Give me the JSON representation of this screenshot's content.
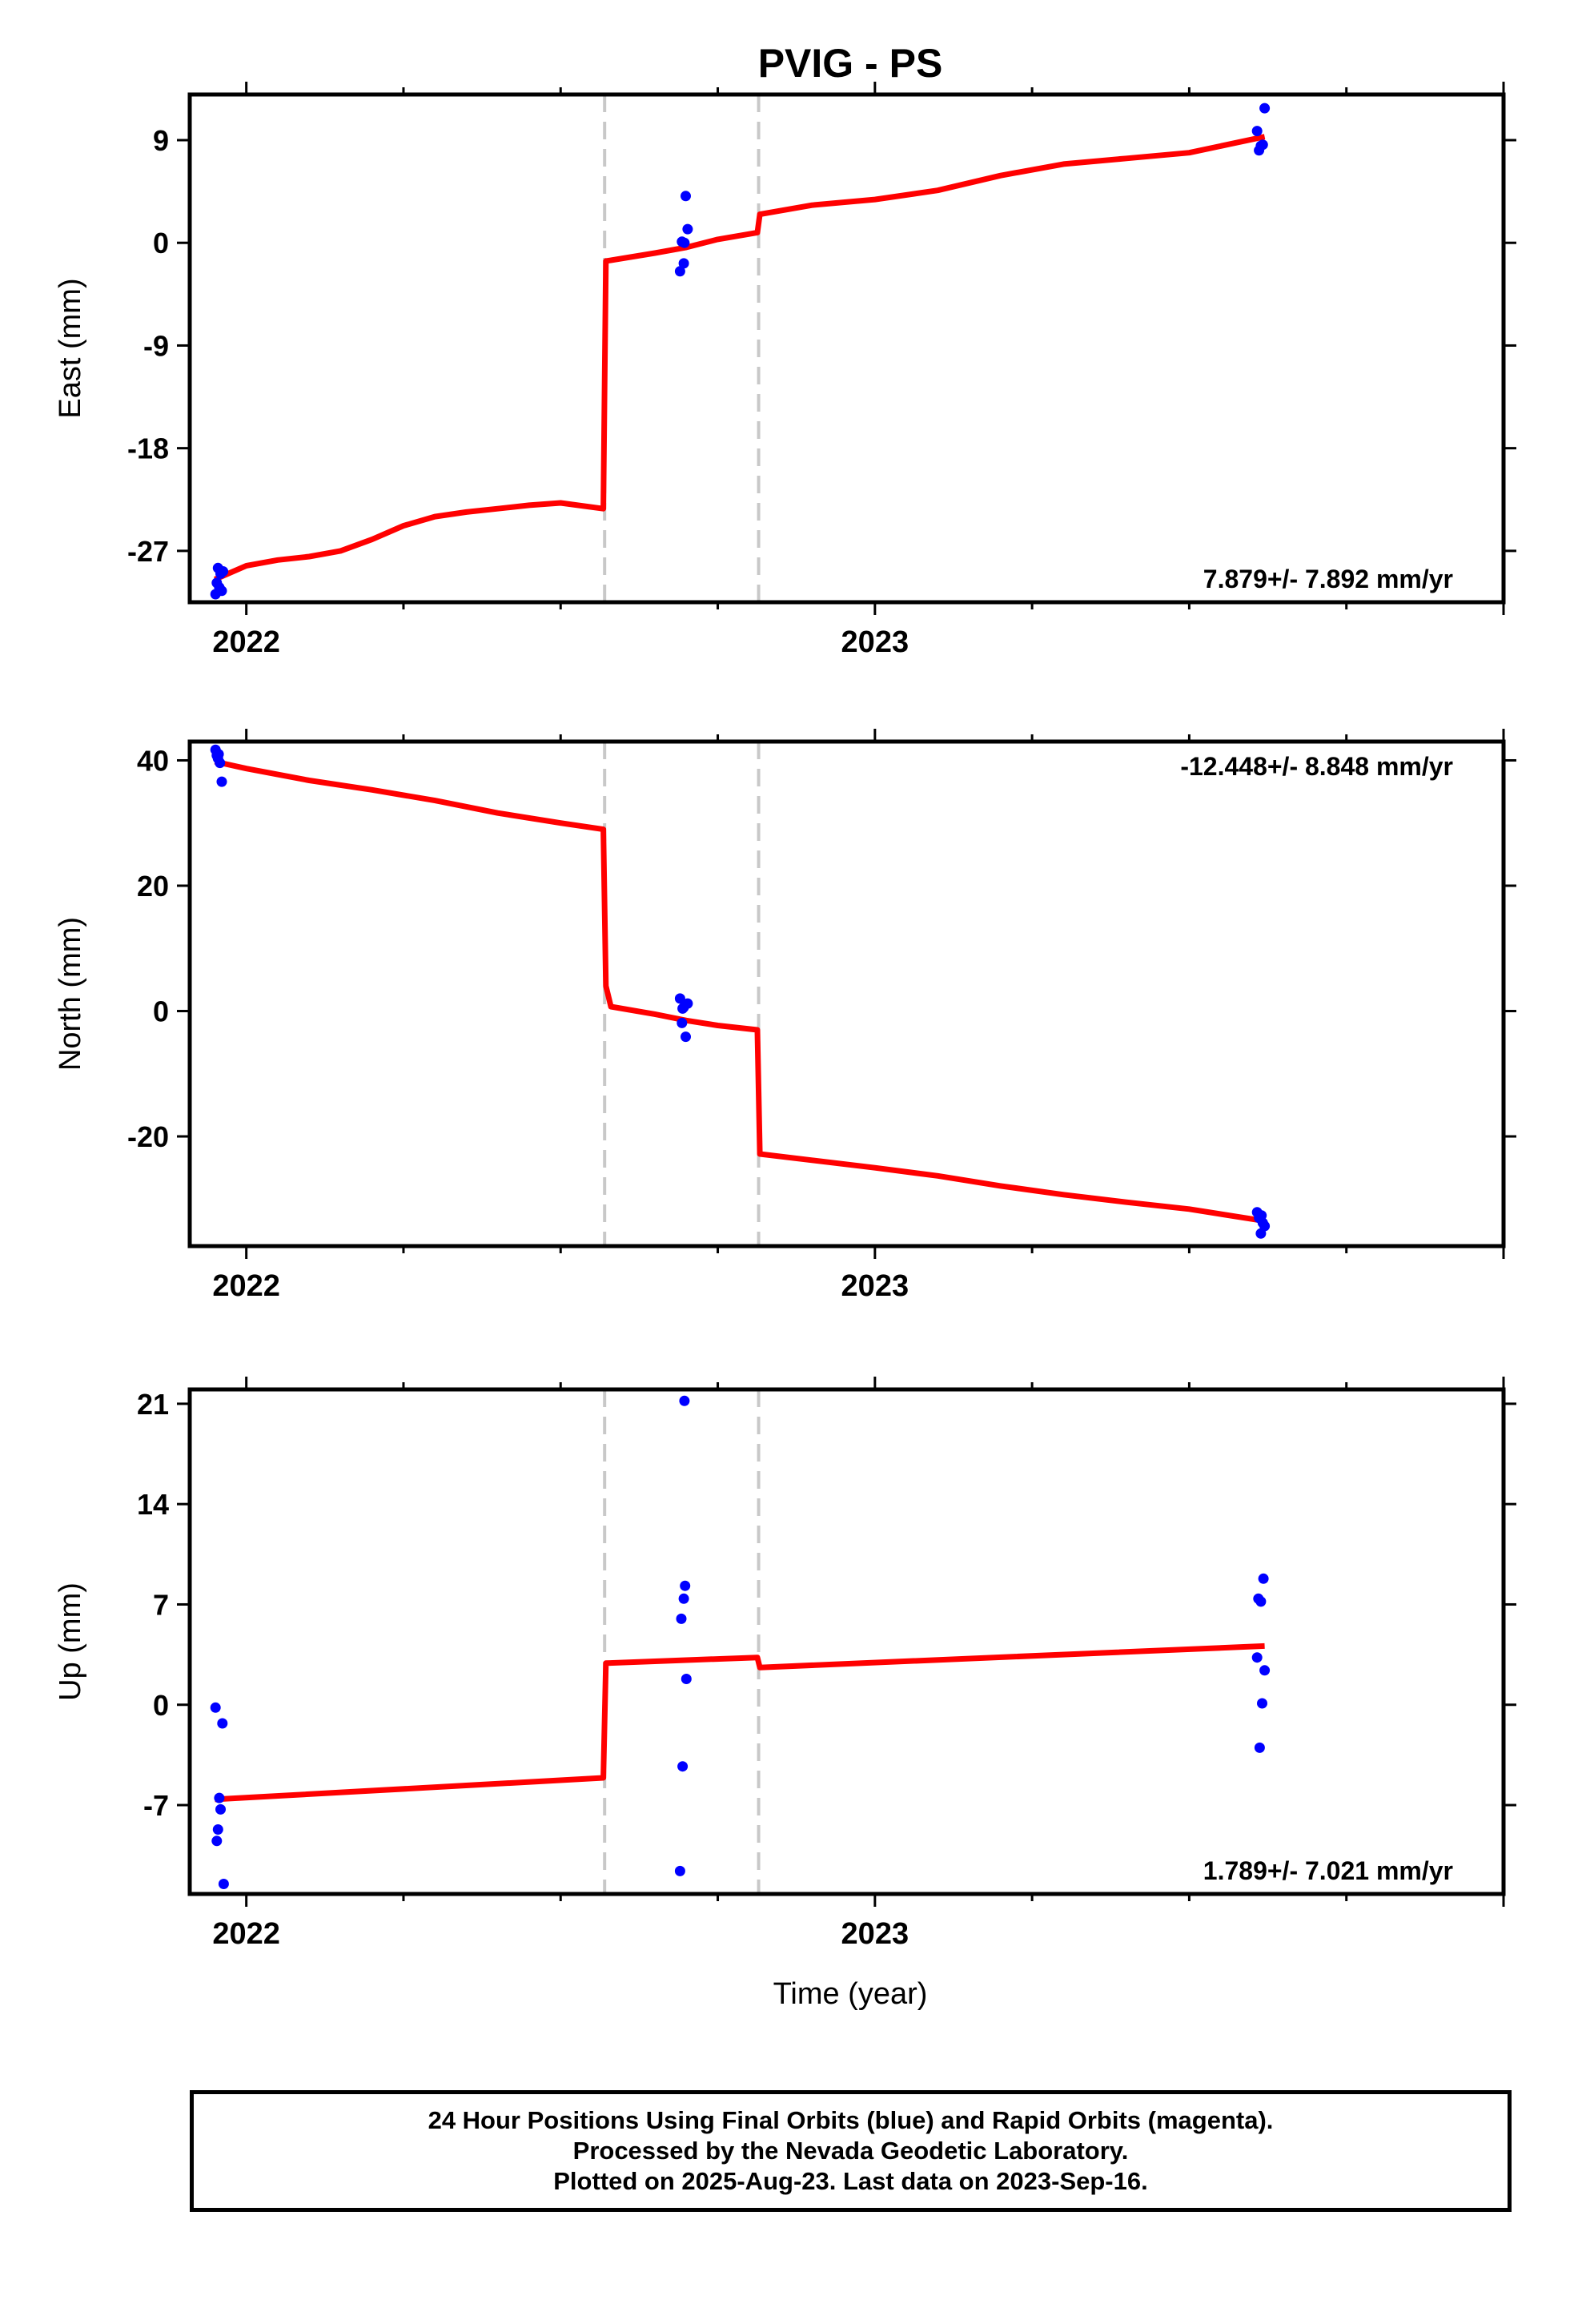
{
  "chart_data": {
    "type": "line",
    "title": "PVIG - PS",
    "xlabel": "Time (year)",
    "xlim": [
      2021.91,
      2024.0
    ],
    "x_ticks": [
      2022,
      2023
    ],
    "offset_epochs": [
      2022.57,
      2022.815
    ],
    "colors": {
      "model": "#ff0000",
      "final_orbits": "#0000ff",
      "offsets": "#c8c8c8"
    },
    "panels": [
      {
        "name": "east",
        "ylabel": "East (mm)",
        "ylim": [
          -31.5,
          13
        ],
        "yticks": [
          -27,
          -18,
          -9,
          0,
          9
        ],
        "yticklabels": [
          "-27",
          "-18",
          "-9",
          "0",
          "9"
        ],
        "rate_label": "7.879+/- 7.892 mm/yr",
        "rate_position": "bottom-right",
        "model": [
          [
            2021.95,
            -29.5
          ],
          [
            2022.0,
            -28.3
          ],
          [
            2022.05,
            -27.8
          ],
          [
            2022.1,
            -27.5
          ],
          [
            2022.15,
            -27.0
          ],
          [
            2022.2,
            -26.0
          ],
          [
            2022.25,
            -24.8
          ],
          [
            2022.3,
            -24.0
          ],
          [
            2022.35,
            -23.6
          ],
          [
            2022.4,
            -23.3
          ],
          [
            2022.45,
            -23.0
          ],
          [
            2022.5,
            -22.8
          ],
          [
            2022.568,
            -23.3
          ],
          [
            2022.572,
            -1.6
          ],
          [
            2022.65,
            -0.9
          ],
          [
            2022.7,
            -0.4
          ],
          [
            2022.75,
            0.3
          ],
          [
            2022.813,
            0.9
          ],
          [
            2022.817,
            2.5
          ],
          [
            2022.9,
            3.3
          ],
          [
            2023.0,
            3.8
          ],
          [
            2023.1,
            4.6
          ],
          [
            2023.2,
            5.9
          ],
          [
            2023.3,
            6.9
          ],
          [
            2023.4,
            7.4
          ],
          [
            2023.5,
            7.9
          ],
          [
            2023.56,
            8.6
          ],
          [
            2023.62,
            9.3
          ]
        ],
        "points": [
          [
            2021.951,
            -30.8
          ],
          [
            2021.953,
            -29.8
          ],
          [
            2021.955,
            -28.5
          ],
          [
            2021.957,
            -30.2
          ],
          [
            2021.959,
            -29.0
          ],
          [
            2021.961,
            -30.5
          ],
          [
            2021.963,
            -28.8
          ],
          [
            2022.69,
            -2.5
          ],
          [
            2022.693,
            0.1
          ],
          [
            2022.696,
            -1.8
          ],
          [
            2022.699,
            4.1
          ],
          [
            2022.702,
            1.2
          ],
          [
            2022.697,
            0.0
          ],
          [
            2023.608,
            9.8
          ],
          [
            2023.611,
            8.1
          ],
          [
            2023.614,
            8.5
          ],
          [
            2023.617,
            8.6
          ],
          [
            2023.62,
            11.8
          ]
        ]
      },
      {
        "name": "north",
        "ylabel": "North (mm)",
        "ylim": [
          -37.5,
          43
        ],
        "yticks": [
          -20,
          0,
          20,
          40
        ],
        "yticklabels": [
          "-20",
          "0",
          "20",
          "40"
        ],
        "rate_label": "-12.448+/- 8.848 mm/yr",
        "rate_position": "top-right",
        "model": [
          [
            2021.95,
            39.8
          ],
          [
            2022.0,
            38.7
          ],
          [
            2022.1,
            36.8
          ],
          [
            2022.2,
            35.3
          ],
          [
            2022.3,
            33.6
          ],
          [
            2022.4,
            31.6
          ],
          [
            2022.5,
            30.0
          ],
          [
            2022.568,
            29.0
          ],
          [
            2022.572,
            4.0
          ],
          [
            2022.58,
            0.7
          ],
          [
            2022.65,
            -0.5
          ],
          [
            2022.7,
            -1.5
          ],
          [
            2022.75,
            -2.3
          ],
          [
            2022.813,
            -3.0
          ],
          [
            2022.817,
            -22.8
          ],
          [
            2022.9,
            -23.8
          ],
          [
            2023.0,
            -25.0
          ],
          [
            2023.1,
            -26.3
          ],
          [
            2023.2,
            -27.9
          ],
          [
            2023.3,
            -29.3
          ],
          [
            2023.4,
            -30.5
          ],
          [
            2023.5,
            -31.6
          ],
          [
            2023.62,
            -33.5
          ]
        ],
        "points": [
          [
            2021.951,
            41.7
          ],
          [
            2021.953,
            40.8
          ],
          [
            2021.955,
            40.3
          ],
          [
            2021.958,
            39.6
          ],
          [
            2021.961,
            36.6
          ],
          [
            2021.956,
            41.0
          ],
          [
            2022.69,
            2.0
          ],
          [
            2022.693,
            -1.9
          ],
          [
            2022.696,
            0.6
          ],
          [
            2022.699,
            -4.1
          ],
          [
            2022.702,
            1.2
          ],
          [
            2022.694,
            0.4
          ],
          [
            2023.608,
            -32.1
          ],
          [
            2023.611,
            -33.0
          ],
          [
            2023.614,
            -35.5
          ],
          [
            2023.617,
            -33.8
          ],
          [
            2023.62,
            -34.3
          ],
          [
            2023.615,
            -32.6
          ]
        ]
      },
      {
        "name": "up",
        "ylabel": "Up (mm)",
        "ylim": [
          -13.2,
          22
        ],
        "yticks": [
          -7,
          0,
          7,
          14,
          21
        ],
        "yticklabels": [
          "-7",
          "0",
          "7",
          "14",
          "21"
        ],
        "rate_label": "1.789+/- 7.021 mm/yr",
        "rate_position": "bottom-right",
        "model": [
          [
            2021.95,
            -6.6
          ],
          [
            2022.568,
            -5.1
          ],
          [
            2022.572,
            2.9
          ],
          [
            2022.813,
            3.3
          ],
          [
            2022.817,
            2.6
          ],
          [
            2023.62,
            4.1
          ]
        ],
        "points": [
          [
            2021.951,
            -0.2
          ],
          [
            2021.953,
            -9.5
          ],
          [
            2021.955,
            -8.7
          ],
          [
            2021.957,
            -6.5
          ],
          [
            2021.959,
            -7.3
          ],
          [
            2021.962,
            -1.3
          ],
          [
            2021.964,
            -12.5
          ],
          [
            2022.69,
            -11.6
          ],
          [
            2022.692,
            6.0
          ],
          [
            2022.694,
            -4.3
          ],
          [
            2022.696,
            7.4
          ],
          [
            2022.698,
            8.3
          ],
          [
            2022.7,
            1.8
          ],
          [
            2022.697,
            21.2
          ],
          [
            2023.608,
            3.3
          ],
          [
            2023.61,
            7.4
          ],
          [
            2023.612,
            -3.0
          ],
          [
            2023.614,
            7.2
          ],
          [
            2023.616,
            0.1
          ],
          [
            2023.618,
            8.8
          ],
          [
            2023.62,
            2.4
          ]
        ]
      }
    ]
  },
  "footer": {
    "line1": "24 Hour Positions Using Final Orbits (blue) and Rapid Orbits (magenta).",
    "line2": "Processed by the Nevada Geodetic Laboratory.",
    "line3": "Plotted on 2025-Aug-23. Last data on 2023-Sep-16."
  }
}
